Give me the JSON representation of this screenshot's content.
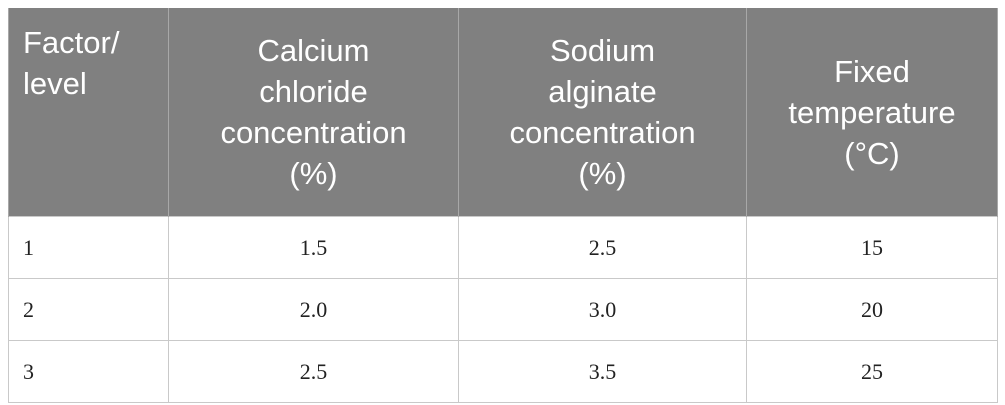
{
  "table": {
    "header": [
      [
        "Factor/",
        "level"
      ],
      [
        "Calcium",
        "chloride",
        "concentration",
        "(%)"
      ],
      [
        "Sodium",
        "alginate",
        "concentration",
        "(%)"
      ],
      [
        "Fixed",
        "temperature",
        "(°C)"
      ]
    ],
    "rows": [
      [
        "1",
        "1.5",
        "2.5",
        "15"
      ],
      [
        "2",
        "2.0",
        "3.0",
        "20"
      ],
      [
        "3",
        "2.5",
        "3.5",
        "25"
      ]
    ]
  }
}
